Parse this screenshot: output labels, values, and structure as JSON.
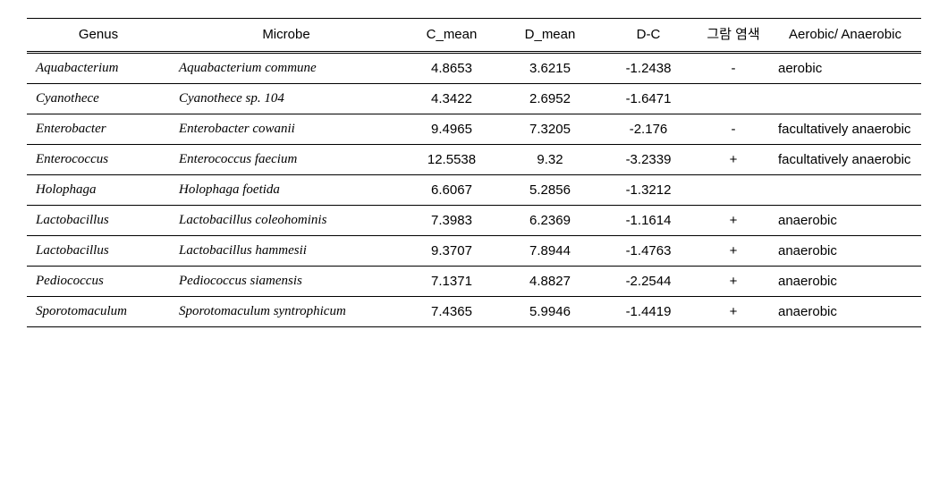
{
  "table": {
    "columns": [
      {
        "key": "genus",
        "label": "Genus"
      },
      {
        "key": "microbe",
        "label": "Microbe"
      },
      {
        "key": "c_mean",
        "label": "C_mean"
      },
      {
        "key": "d_mean",
        "label": "D_mean"
      },
      {
        "key": "d_minus_c",
        "label": "D-C"
      },
      {
        "key": "gram",
        "label": "그람\n염색"
      },
      {
        "key": "aerobic",
        "label": "Aerobic/\nAnaerobic"
      }
    ],
    "rows": [
      {
        "genus": "Aquabacterium",
        "microbe": "Aquabacterium commune",
        "c_mean": "4.8653",
        "d_mean": "3.6215",
        "d_minus_c": "-1.2438",
        "gram": "-",
        "aerobic": "aerobic"
      },
      {
        "genus": "Cyanothece",
        "microbe": "Cyanothece sp. 104",
        "c_mean": "4.3422",
        "d_mean": "2.6952",
        "d_minus_c": "-1.6471",
        "gram": "",
        "aerobic": ""
      },
      {
        "genus": "Enterobacter",
        "microbe": "Enterobacter cowanii",
        "c_mean": "9.4965",
        "d_mean": "7.3205",
        "d_minus_c": "-2.176",
        "gram": "-",
        "aerobic": "facultatively anaerobic"
      },
      {
        "genus": "Enterococcus",
        "microbe": "Enterococcus faecium",
        "c_mean": "12.5538",
        "d_mean": "9.32",
        "d_minus_c": "-3.2339",
        "gram": "+",
        "aerobic": "facultatively anaerobic"
      },
      {
        "genus": "Holophaga",
        "microbe": "Holophaga foetida",
        "c_mean": "6.6067",
        "d_mean": "5.2856",
        "d_minus_c": "-1.3212",
        "gram": "",
        "aerobic": ""
      },
      {
        "genus": "Lactobacillus",
        "microbe": "Lactobacillus coleohominis",
        "c_mean": "7.3983",
        "d_mean": "6.2369",
        "d_minus_c": "-1.1614",
        "gram": "+",
        "aerobic": "anaerobic"
      },
      {
        "genus": "Lactobacillus",
        "microbe": "Lactobacillus hammesii",
        "c_mean": "9.3707",
        "d_mean": "7.8944",
        "d_minus_c": "-1.4763",
        "gram": "+",
        "aerobic": "anaerobic"
      },
      {
        "genus": "Pediococcus",
        "microbe": "Pediococcus siamensis",
        "c_mean": "7.1371",
        "d_mean": "4.8827",
        "d_minus_c": "-2.2544",
        "gram": "+",
        "aerobic": "anaerobic"
      },
      {
        "genus": "Sporotomaculum",
        "microbe": "Sporotomaculum syntrophicum",
        "c_mean": "7.4365",
        "d_mean": "5.9946",
        "d_minus_c": "-1.4419",
        "gram": "+",
        "aerobic": "anaerobic"
      }
    ],
    "style": {
      "font_body": "Times New Roman / Batang",
      "font_header": "Arial / Malgun Gothic",
      "font_size_pt": 11,
      "text_color": "#000000",
      "background_color": "#ffffff",
      "border_color": "#000000",
      "header_border": "double",
      "column_widths_pct": [
        16,
        26,
        11,
        11,
        11,
        8,
        17
      ],
      "italics_columns": [
        "genus",
        "microbe"
      ],
      "center_columns": [
        "c_mean",
        "d_mean",
        "d_minus_c",
        "gram"
      ],
      "left_columns": [
        "genus",
        "microbe",
        "aerobic"
      ]
    }
  }
}
